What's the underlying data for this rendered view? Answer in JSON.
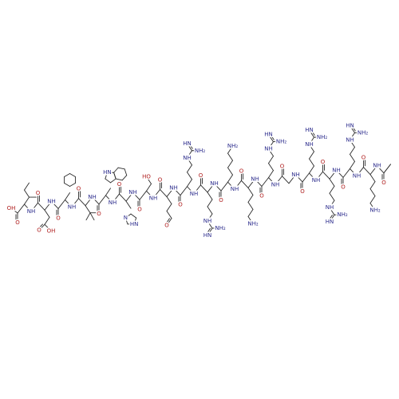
{
  "molecule": {
    "residues": [
      {
        "carbonyl": [
          "O",
          "OH"
        ],
        "amide": "NH",
        "side_chain": []
      },
      {
        "carbonyl": [
          "O"
        ],
        "amide": "NH",
        "side_chain": [
          "O",
          "OH"
        ]
      },
      {
        "carbonyl": [
          "O"
        ],
        "amide": "NH",
        "side_chain": []
      },
      {
        "carbonyl": [
          "O"
        ],
        "amide": "NH",
        "side_chain": []
      },
      {
        "carbonyl": [
          "O"
        ],
        "amide": "NH",
        "side_chain": [
          "HN"
        ]
      },
      {
        "carbonyl": [
          "O"
        ],
        "amide": "NH",
        "side_chain": [
          "N",
          "HN"
        ]
      },
      {
        "carbonyl": [
          "O"
        ],
        "amide": "NH",
        "side_chain": [
          "HO"
        ]
      },
      {
        "carbonyl": [
          "O"
        ],
        "amide": "NH",
        "side_chain": [
          "O"
        ]
      },
      {
        "carbonyl": [
          "O"
        ],
        "amide": "NH",
        "side_chain": [
          "NH",
          "HN",
          "NH₂"
        ]
      },
      {
        "carbonyl": [
          "O"
        ],
        "amide": "NH",
        "side_chain": [
          "NH",
          "HN",
          "NH₂"
        ]
      },
      {
        "carbonyl": [
          "O"
        ],
        "amide": "NH",
        "side_chain": [
          "NH₂"
        ]
      },
      {
        "carbonyl": [
          "O"
        ],
        "amide": "NH",
        "side_chain": [
          "NH₂"
        ]
      },
      {
        "carbonyl": [
          "O"
        ],
        "amide": "NH",
        "side_chain": [
          "NH",
          "HN",
          "NH₂"
        ]
      },
      {
        "carbonyl": [
          "O"
        ],
        "amide": "NH",
        "side_chain": []
      },
      {
        "carbonyl": [
          "O"
        ],
        "amide": "NH",
        "side_chain": [
          "NH",
          "HN",
          "NH₂"
        ]
      },
      {
        "carbonyl": [
          "O"
        ],
        "amide": "NH",
        "side_chain": [
          "NH",
          "HN",
          "NH₂"
        ]
      },
      {
        "carbonyl": [
          "O"
        ],
        "amide": "NH",
        "side_chain": [
          "NH",
          "HN",
          "NH₂"
        ]
      },
      {
        "carbonyl": [
          "O"
        ],
        "amide": "NH",
        "side_chain": [
          "NH₂"
        ]
      }
    ],
    "acetyl": {
      "carbonyl": "O"
    }
  }
}
